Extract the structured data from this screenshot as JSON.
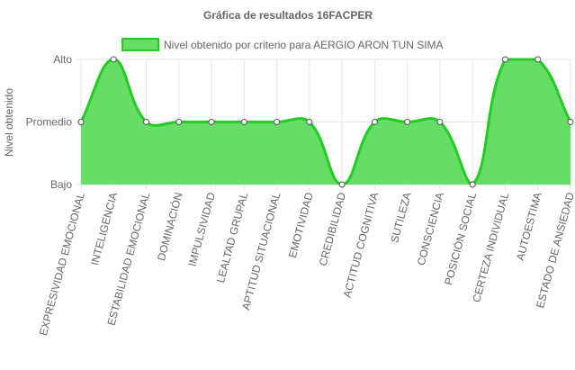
{
  "chart_data": {
    "type": "area",
    "title": "Gráfica de resultados 16FACPER",
    "ylabel": "Nivel obtenido",
    "xlabel": "",
    "y_levels": [
      "Bajo",
      "Promedio",
      "Alto"
    ],
    "categories": [
      "EXPRESIVIDAD EMOCIONAL",
      "INTELIGENCIA",
      "ESTABILIDAD EMOCIONAL",
      "DOMINACIÓN",
      "IMPULSIVIDAD",
      "LEALTAD GRUPAL",
      "APTITUD SITUACIONAL",
      "EMOTIVIDAD",
      "CREDIBILIDAD",
      "ACTITUD COGNITIVA",
      "SUTILEZA",
      "CONSCIENCIA",
      "POSICIÓN SOCIAL",
      "CERTEZA INDIVIDUAL",
      "AUTOESTIMA",
      "ESTADO DE ANSIEDAD"
    ],
    "series": [
      {
        "name": "Nivel obtenido por criterio para AERGIO ARON TUN SIMA",
        "values": [
          "Promedio",
          "Alto",
          "Promedio",
          "Promedio",
          "Promedio",
          "Promedio",
          "Promedio",
          "Promedio",
          "Bajo",
          "Promedio",
          "Promedio",
          "Promedio",
          "Bajo",
          "Alto",
          "Alto",
          "Promedio"
        ]
      }
    ],
    "fill_color": "#66dd66",
    "line_color": "#22cc22",
    "point_fill": "#ffffff",
    "grid": true,
    "legend_position": "top"
  }
}
